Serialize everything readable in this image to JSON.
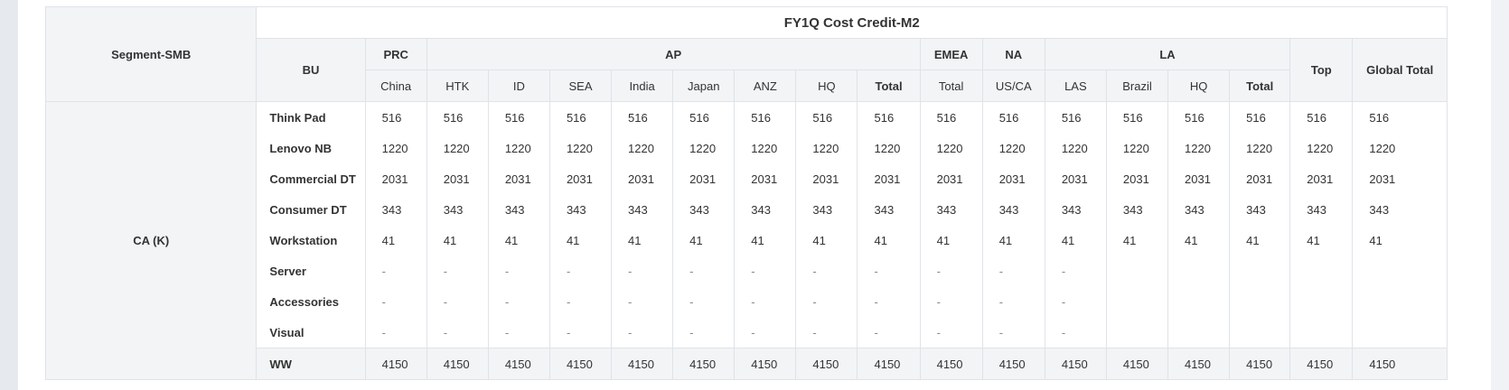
{
  "table": {
    "title": "FY1Q Cost Credit-M2",
    "segment_label": "Segment-SMB",
    "bu_label": "BU",
    "segment_value": "CA (K)",
    "regions": {
      "prc": "PRC",
      "ap": "AP",
      "emea": "EMEA",
      "na": "NA",
      "la": "LA",
      "top": "Top",
      "global_total": "Global Total"
    },
    "subheaders": {
      "china": "China",
      "htk": "HTK",
      "id": "ID",
      "sea": "SEA",
      "india": "India",
      "japan": "Japan",
      "anz": "ANZ",
      "ap_hq": "HQ",
      "ap_total": "Total",
      "emea_total": "Total",
      "usca": "US/CA",
      "las": "LAS",
      "brazil": "Brazil",
      "la_hq": "HQ",
      "la_total": "Total"
    },
    "rows": [
      {
        "bu": "Think Pad",
        "c": [
          "516",
          "516",
          "516",
          "516",
          "516",
          "516",
          "516",
          "516",
          "516",
          "516",
          "516",
          "516",
          "516",
          "516",
          "516",
          "516",
          "516"
        ]
      },
      {
        "bu": "Lenovo NB",
        "c": [
          "1220",
          "1220",
          "1220",
          "1220",
          "1220",
          "1220",
          "1220",
          "1220",
          "1220",
          "1220",
          "1220",
          "1220",
          "1220",
          "1220",
          "1220",
          "1220",
          "1220"
        ]
      },
      {
        "bu": "Commercial DT",
        "c": [
          "2031",
          "2031",
          "2031",
          "2031",
          "2031",
          "2031",
          "2031",
          "2031",
          "2031",
          "2031",
          "2031",
          "2031",
          "2031",
          "2031",
          "2031",
          "2031",
          "2031"
        ]
      },
      {
        "bu": "Consumer DT",
        "c": [
          "343",
          "343",
          "343",
          "343",
          "343",
          "343",
          "343",
          "343",
          "343",
          "343",
          "343",
          "343",
          "343",
          "343",
          "343",
          "343",
          "343"
        ]
      },
      {
        "bu": "Workstation",
        "c": [
          "41",
          "41",
          "41",
          "41",
          "41",
          "41",
          "41",
          "41",
          "41",
          "41",
          "41",
          "41",
          "41",
          "41",
          "41",
          "41",
          "41"
        ]
      },
      {
        "bu": "Server",
        "c": [
          "-",
          "-",
          "-",
          "-",
          "-",
          "-",
          "-",
          "-",
          "-",
          "-",
          "-",
          "-",
          "",
          "",
          "",
          "",
          ""
        ]
      },
      {
        "bu": "Accessories",
        "c": [
          "-",
          "-",
          "-",
          "-",
          "-",
          "-",
          "-",
          "-",
          "-",
          "-",
          "-",
          "-",
          "",
          "",
          "",
          "",
          ""
        ]
      },
      {
        "bu": "Visual",
        "c": [
          "-",
          "-",
          "-",
          "-",
          "-",
          "-",
          "-",
          "-",
          "-",
          "-",
          "-",
          "-",
          "",
          "",
          "",
          "",
          ""
        ]
      }
    ],
    "ww": {
      "bu": "WW",
      "c": [
        "4150",
        "4150",
        "4150",
        "4150",
        "4150",
        "4150",
        "4150",
        "4150",
        "4150",
        "4150",
        "4150",
        "4150",
        "4150",
        "4150",
        "4150",
        "4150",
        "4150"
      ]
    }
  }
}
